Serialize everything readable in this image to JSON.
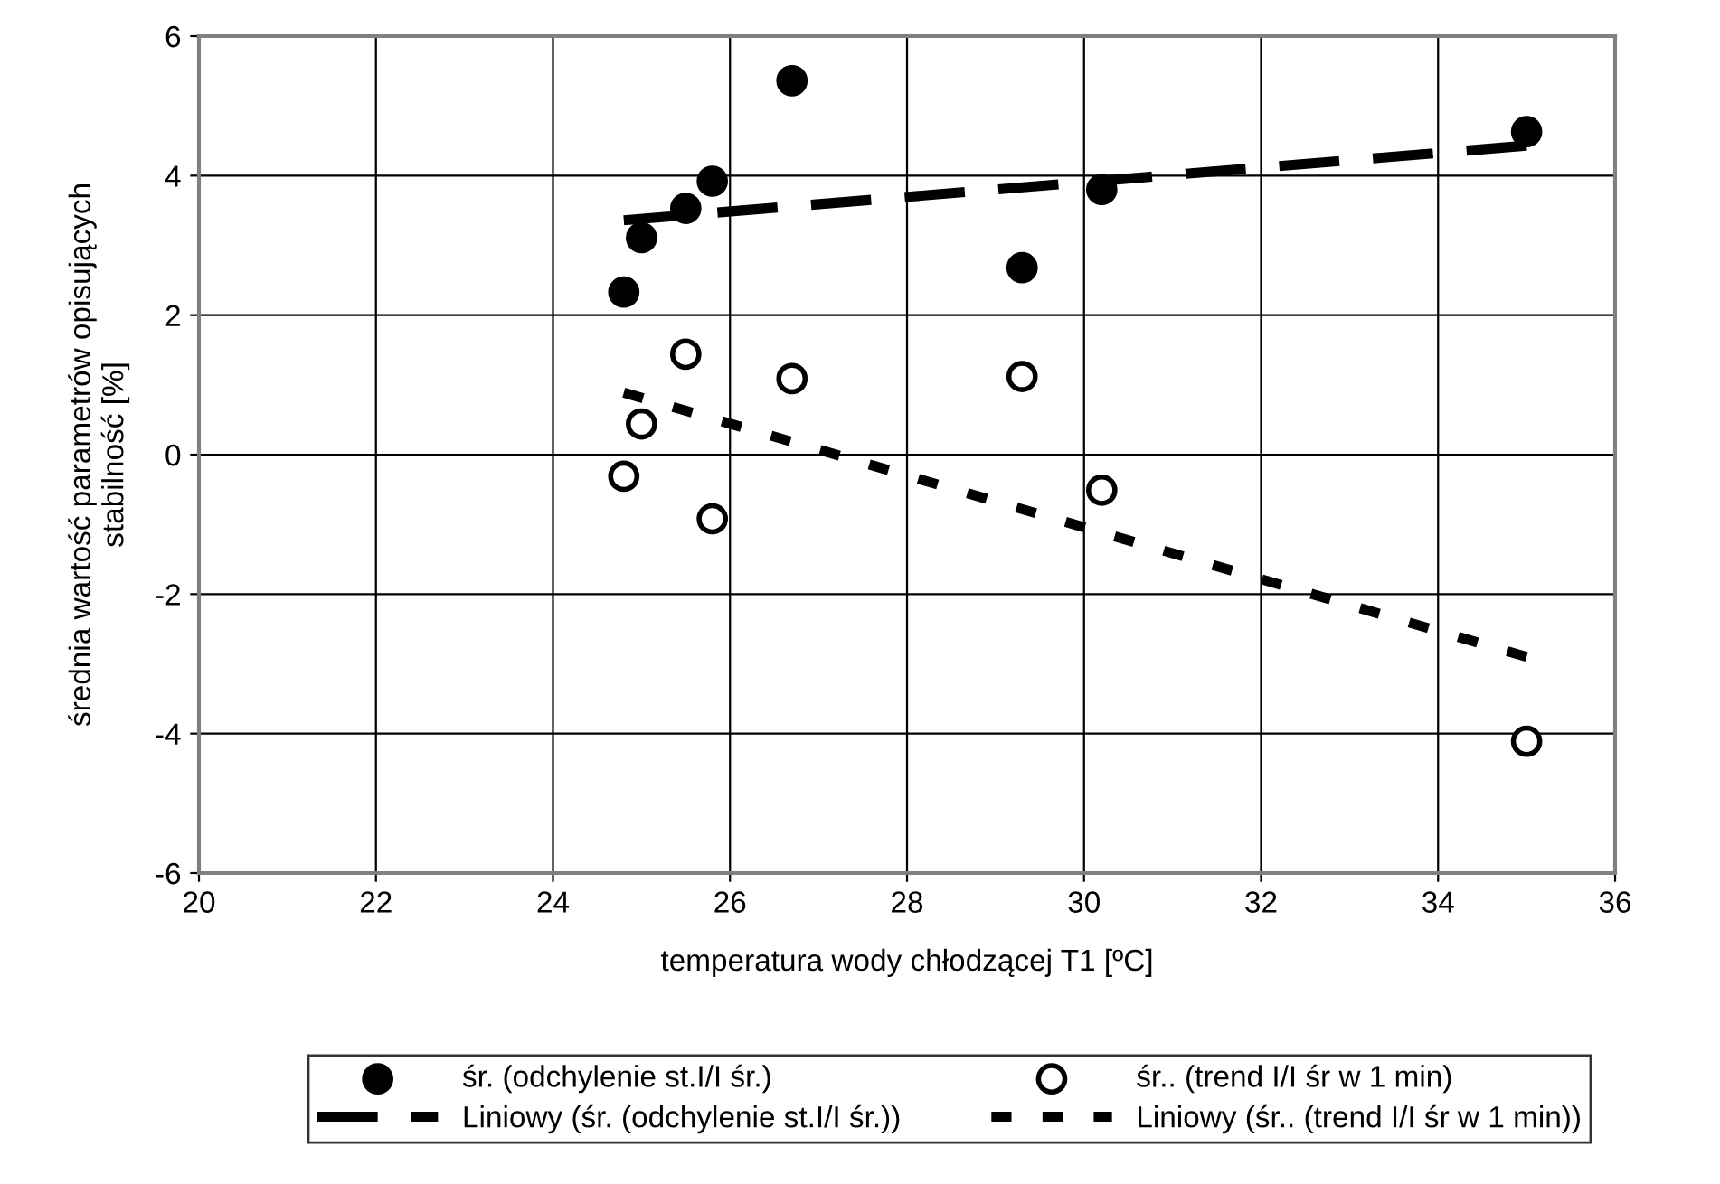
{
  "chart_data": {
    "type": "scatter",
    "xlabel": "temperatura wody chłodzącej T1 [ºC]",
    "ylabel": "średnia wartość parametrów opisujących\nstabilność [%]",
    "xlim": [
      20,
      36
    ],
    "xticks": [
      20,
      22,
      24,
      26,
      28,
      30,
      32,
      34,
      36
    ],
    "ylim": [
      -6,
      6
    ],
    "yticks": [
      -6,
      -4,
      -2,
      0,
      2,
      4,
      6
    ],
    "grid": true,
    "legend": "bottom",
    "series": [
      {
        "name": "śr. (odchylenie st.I/I śr.)",
        "marker": "circle",
        "color": "#000000",
        "x": [
          24.8,
          25.0,
          25.5,
          25.8,
          26.7,
          29.3,
          30.2,
          35.0
        ],
        "values": [
          2.33,
          3.11,
          3.53,
          3.92,
          5.36,
          2.68,
          3.8,
          4.63
        ]
      },
      {
        "name": "śr.. (trend I/I śr w 1 min)",
        "marker": "circle",
        "color": "#ffffff",
        "x": [
          24.8,
          25.0,
          25.5,
          25.8,
          26.7,
          29.3,
          30.2,
          35.0
        ],
        "values": [
          -0.31,
          0.44,
          1.44,
          -0.92,
          1.09,
          1.12,
          -0.51,
          -4.11
        ]
      },
      {
        "name": "Liniowy (śr. (odchylenie st.I/I śr.))",
        "type": "line",
        "line_style": "dashed",
        "color": "#000000",
        "x": [
          24.8,
          35.0
        ],
        "values": [
          3.36,
          4.43
        ]
      },
      {
        "name": "Liniowy (śr.. (trend I/I śr w 1 min))",
        "type": "line",
        "line_style": "dotted",
        "color": "#000000",
        "x": [
          24.8,
          35.0
        ],
        "values": [
          0.89,
          -2.9
        ]
      }
    ]
  }
}
